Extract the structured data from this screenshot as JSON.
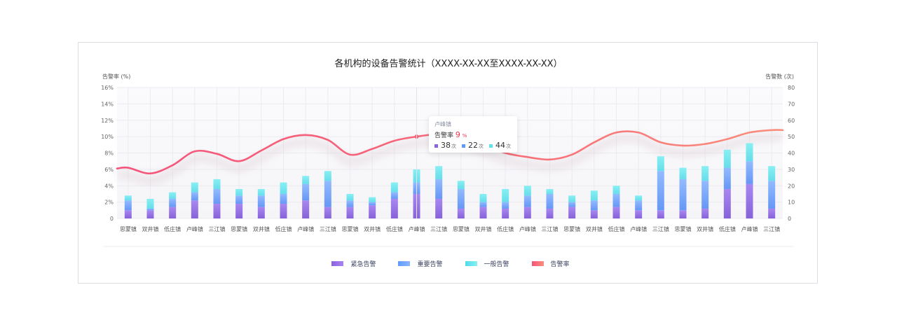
{
  "chart_data": {
    "type": "bar",
    "title": "各机构的设备告警统计（XXXX-XX-XX至XXXX-XX-XX）",
    "ylabel_left": "告警率 (%)",
    "ylabel_right": "告警数 (次)",
    "ylim_left": [
      0,
      16
    ],
    "yticks_left": [
      "0",
      "2%",
      "4%",
      "6%",
      "8%",
      "10%",
      "12%",
      "14%",
      "16%"
    ],
    "ylim_right": [
      0,
      80
    ],
    "yticks_right": [
      "0",
      "10",
      "20",
      "30",
      "40",
      "50",
      "60",
      "70",
      "80"
    ],
    "grid": true,
    "stacked": true,
    "legend_position": "bottom",
    "categories": [
      "思蒙镇",
      "双井镇",
      "低庄镇",
      "卢峰镇",
      "三江镇",
      "思蒙镇",
      "双井镇",
      "低庄镇",
      "卢峰镇",
      "三江镇",
      "思蒙镇",
      "双井镇",
      "低庄镇",
      "卢峰镇",
      "三江镇",
      "思蒙镇",
      "双井镇",
      "低庄镇",
      "卢峰镇",
      "三江镇",
      "思蒙镇",
      "双井镇",
      "低庄镇",
      "卢峰镇",
      "三江镇",
      "思蒙镇",
      "双井镇",
      "低庄镇",
      "卢峰镇",
      "三江镇"
    ],
    "series": [
      {
        "name": "紧急告警",
        "type": "bar",
        "axis": "right",
        "color": "#8b62e0",
        "values": [
          5,
          5,
          7,
          11,
          9,
          9,
          7,
          9,
          11,
          7,
          7,
          8,
          12,
          15,
          12,
          6,
          7,
          6,
          7,
          6,
          7,
          5,
          7,
          5,
          5,
          5,
          6,
          18,
          21,
          6
        ]
      },
      {
        "name": "重要告警",
        "type": "bar",
        "axis": "right",
        "color": "#5f9bff",
        "values": [
          6,
          1,
          5,
          5,
          9,
          5,
          7,
          6,
          10,
          16,
          4,
          2,
          4,
          7,
          12,
          12,
          3,
          4,
          7,
          9,
          3,
          6,
          8,
          6,
          24,
          19,
          17,
          13,
          14,
          17
        ]
      },
      {
        "name": "一般告警",
        "type": "bar",
        "axis": "right",
        "color": "#5ee3ee",
        "values": [
          3,
          6,
          4,
          6,
          6,
          4,
          4,
          7,
          5,
          6,
          4,
          3,
          6,
          8,
          8,
          5,
          5,
          8,
          6,
          3,
          4,
          6,
          5,
          3,
          9,
          7,
          9,
          11,
          11,
          9
        ]
      },
      {
        "name": "告警率",
        "type": "line",
        "axis": "left",
        "color": "#f5547a",
        "color_end": "#fa8f7c",
        "values": [
          6.2,
          5.5,
          6.5,
          8.2,
          7.9,
          7.0,
          8.3,
          9.7,
          10.2,
          9.6,
          7.8,
          8.5,
          9.5,
          10.0,
          10.3,
          10.0,
          9.0,
          8.0,
          7.5,
          7.2,
          7.8,
          9.3,
          10.5,
          10.5,
          9.3,
          8.9,
          9.1,
          9.7,
          10.5,
          10.8
        ]
      }
    ],
    "tooltip": {
      "title": "卢峰镇",
      "rate_label": "告警率",
      "rate_value": "9",
      "rate_unit": "%",
      "items": [
        {
          "value": "38",
          "unit": "次",
          "color": "#8b62e0"
        },
        {
          "value": "22",
          "unit": "次",
          "color": "#5f9bff"
        },
        {
          "value": "44",
          "unit": "次",
          "color": "#5ee3ee"
        }
      ]
    }
  }
}
